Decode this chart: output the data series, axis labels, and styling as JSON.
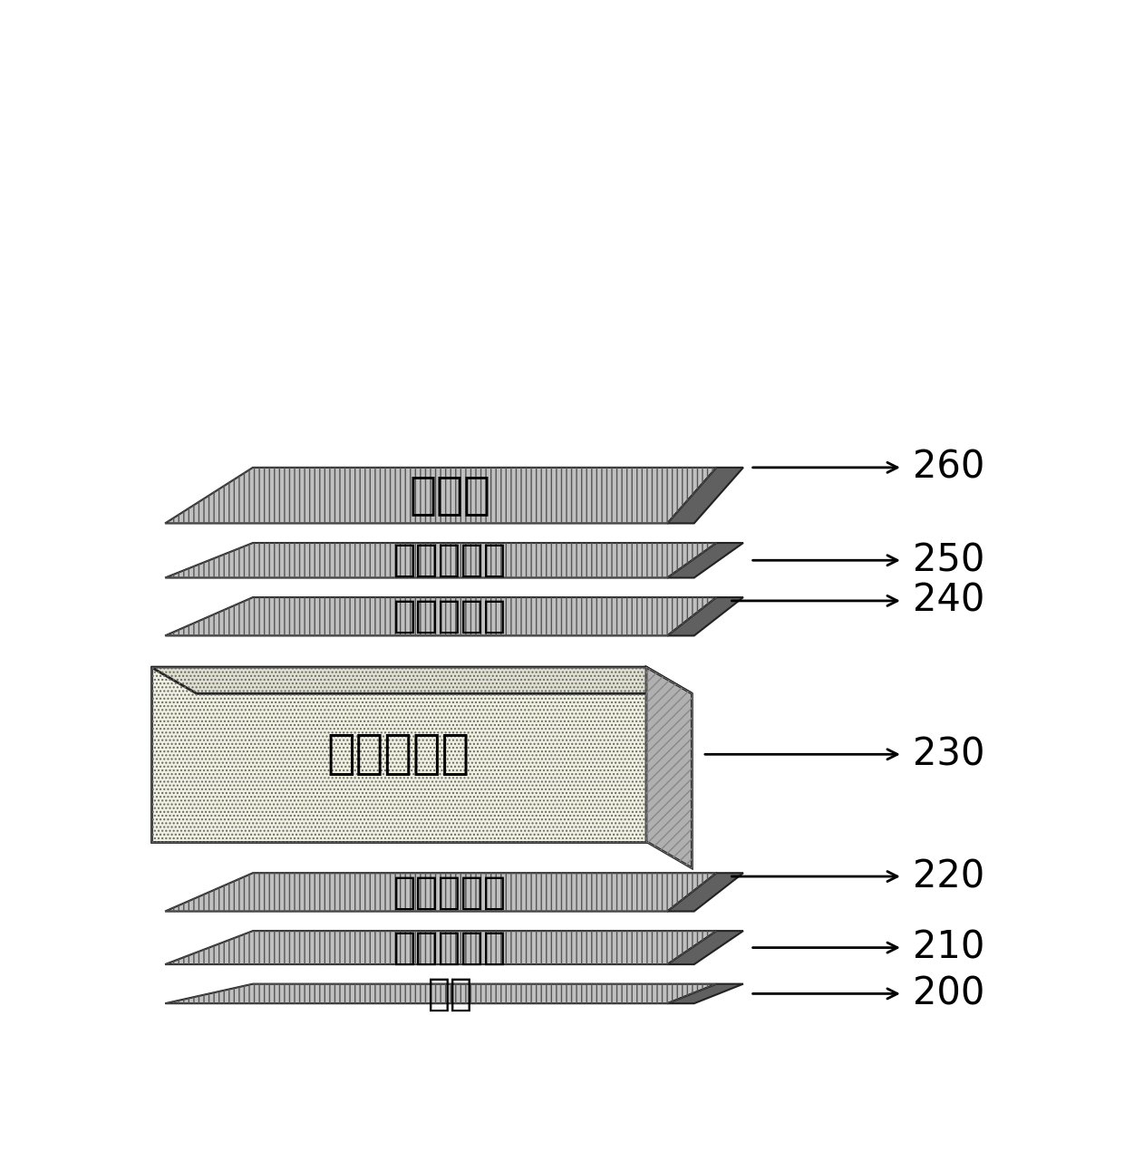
{
  "bg_color": "#ffffff",
  "slab_face_color": "#c8c8c8",
  "slab_edge_color": "#888888",
  "slab_dark_edge_color": "#444444",
  "box_face_color": "#f0f0e0",
  "box_side_color": "#b0b0b0",
  "label_fontsize": 30,
  "number_fontsize": 30,
  "label_font_weight": "bold",
  "layers": [
    {
      "label": "基板",
      "number": "200",
      "type": "slab_thin"
    },
    {
      "label": "第一导电层",
      "number": "210",
      "type": "slab_mid"
    },
    {
      "label": "第一变色层",
      "number": "220",
      "type": "slab_mid"
    },
    {
      "label": "离子传导层",
      "number": "230",
      "type": "box3d"
    },
    {
      "label": "第二变色层",
      "number": "240",
      "type": "slab_mid"
    },
    {
      "label": "第二导电层",
      "number": "250",
      "type": "slab_mid"
    },
    {
      "label": "保护层",
      "number": "260",
      "type": "slab_large"
    }
  ]
}
